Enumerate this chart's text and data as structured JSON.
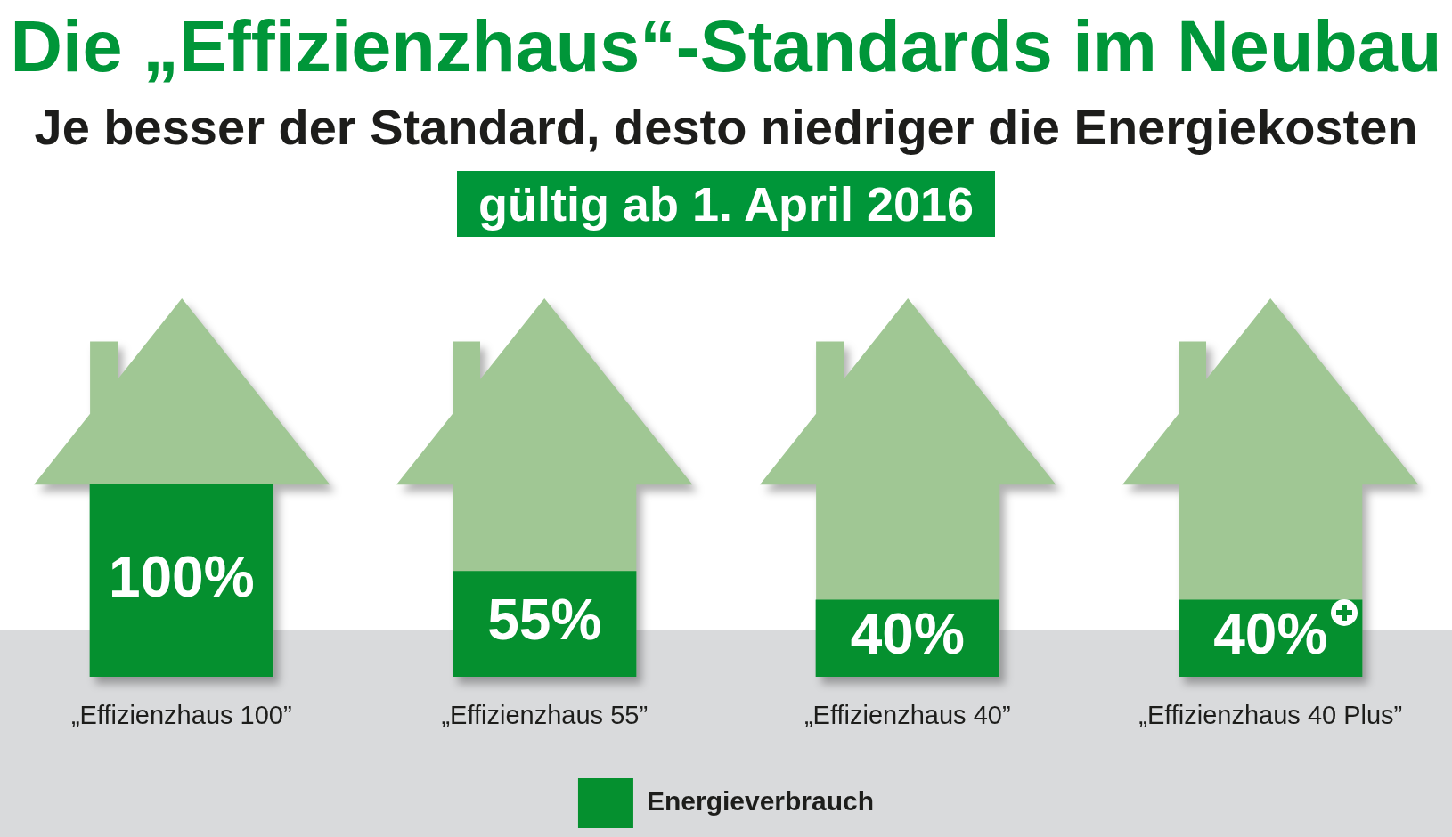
{
  "chart_data": {
    "type": "bar",
    "title": "Die „Effizienzhaus“-Standards im Neubau",
    "subtitle": "Je besser der Standard, desto niedriger die Energiekosten",
    "annotations": [
      "gültig ab 1. April 2016"
    ],
    "categories": [
      "„Effizienzhaus 100”",
      "„Effizienzhaus 55”",
      "„Effizienzhaus 40”",
      "„Effizienzhaus 40 Plus”"
    ],
    "series": [
      {
        "name": "Energieverbrauch",
        "color": "#05902f",
        "values": [
          100,
          55,
          40,
          40
        ],
        "value_labels": [
          "100%",
          "55%",
          "40%",
          "40%"
        ]
      }
    ],
    "legend": "bottom"
  }
}
